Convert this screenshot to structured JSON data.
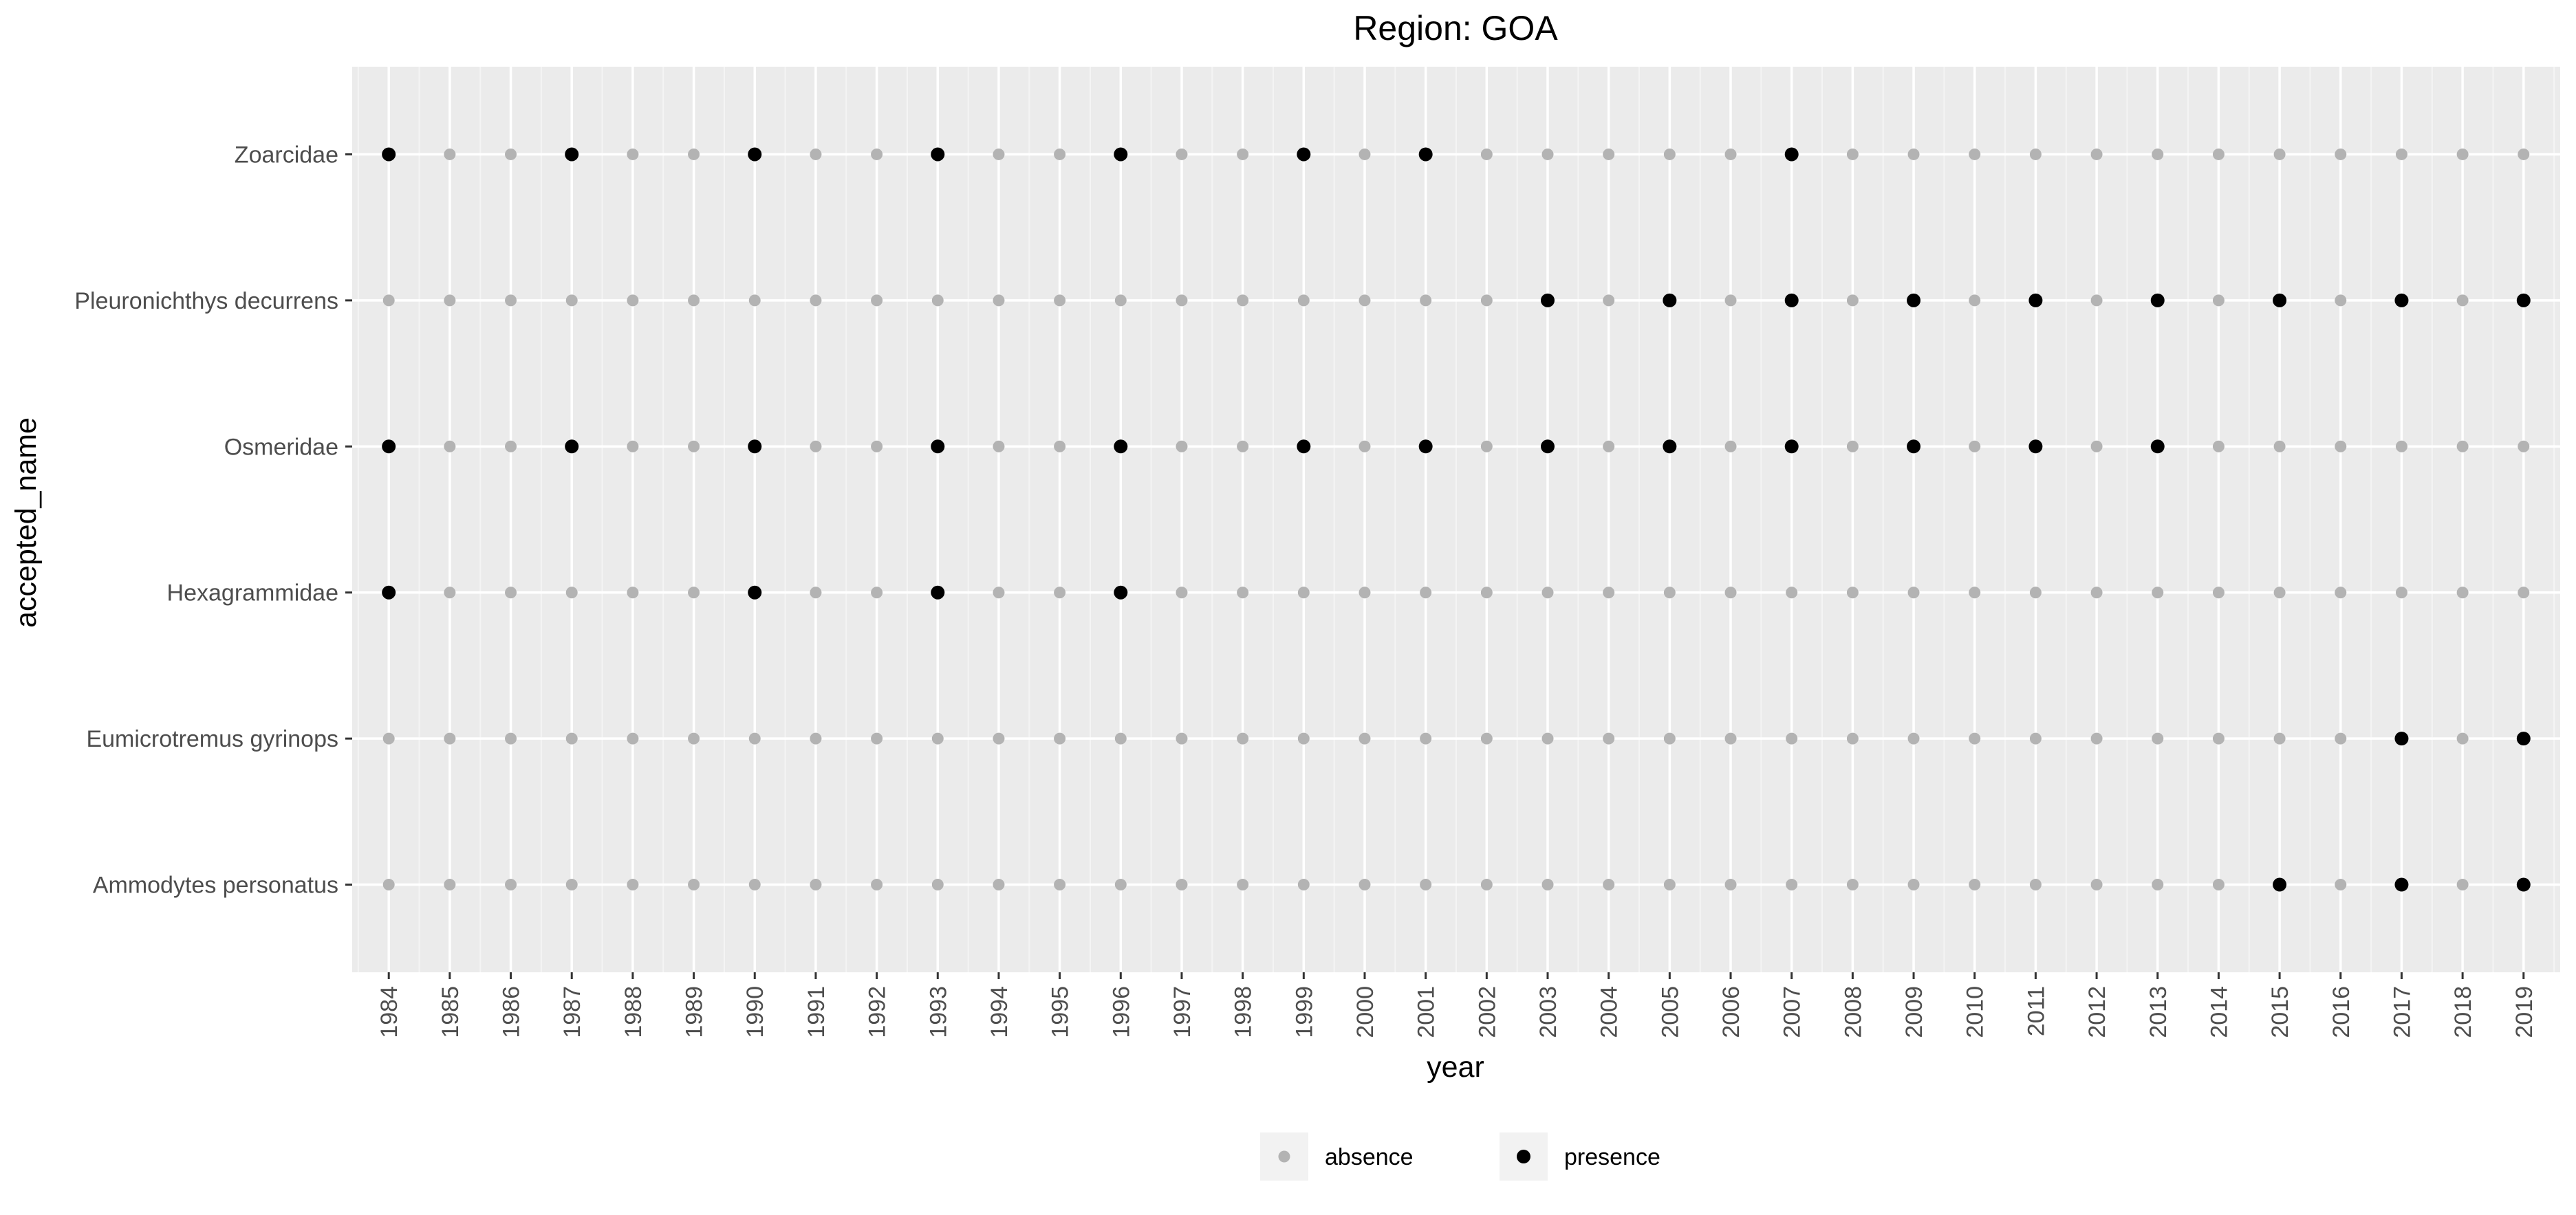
{
  "chart_data": {
    "type": "scatter",
    "title": "Region: GOA",
    "xlabel": "year",
    "ylabel": "accepted_name",
    "x": [
      "1984",
      "1985",
      "1986",
      "1987",
      "1988",
      "1989",
      "1990",
      "1991",
      "1992",
      "1993",
      "1994",
      "1995",
      "1996",
      "1997",
      "1998",
      "1999",
      "2000",
      "2001",
      "2002",
      "2003",
      "2004",
      "2005",
      "2006",
      "2007",
      "2008",
      "2009",
      "2010",
      "2011",
      "2012",
      "2013",
      "2014",
      "2015",
      "2016",
      "2017",
      "2018",
      "2019"
    ],
    "categories": [
      "Zoarcidae",
      "Pleuronichthys decurrens",
      "Osmeridae",
      "Hexagrammidae",
      "Eumicrotremus gyrinops",
      "Ammodytes personatus"
    ],
    "legend": {
      "position": "bottom",
      "entries": [
        {
          "label": "absence",
          "color": "#b3b3b3"
        },
        {
          "label": "presence",
          "color": "#000000"
        }
      ]
    },
    "grid": true,
    "presence": [
      {
        "name": "Zoarcidae",
        "years": [
          "1984",
          "1987",
          "1990",
          "1993",
          "1996",
          "1999",
          "2001",
          "2007"
        ]
      },
      {
        "name": "Pleuronichthys decurrens",
        "years": [
          "2003",
          "2005",
          "2007",
          "2009",
          "2011",
          "2013",
          "2015",
          "2017",
          "2019"
        ]
      },
      {
        "name": "Osmeridae",
        "years": [
          "1984",
          "1987",
          "1990",
          "1993",
          "1996",
          "1999",
          "2001",
          "2003",
          "2005",
          "2007",
          "2009",
          "2011",
          "2013"
        ]
      },
      {
        "name": "Hexagrammidae",
        "years": [
          "1984",
          "1990",
          "1993",
          "1996"
        ]
      },
      {
        "name": "Eumicrotremus gyrinops",
        "years": [
          "2017",
          "2019"
        ]
      },
      {
        "name": "Ammodytes personatus",
        "years": [
          "2015",
          "2017",
          "2019"
        ]
      }
    ]
  }
}
